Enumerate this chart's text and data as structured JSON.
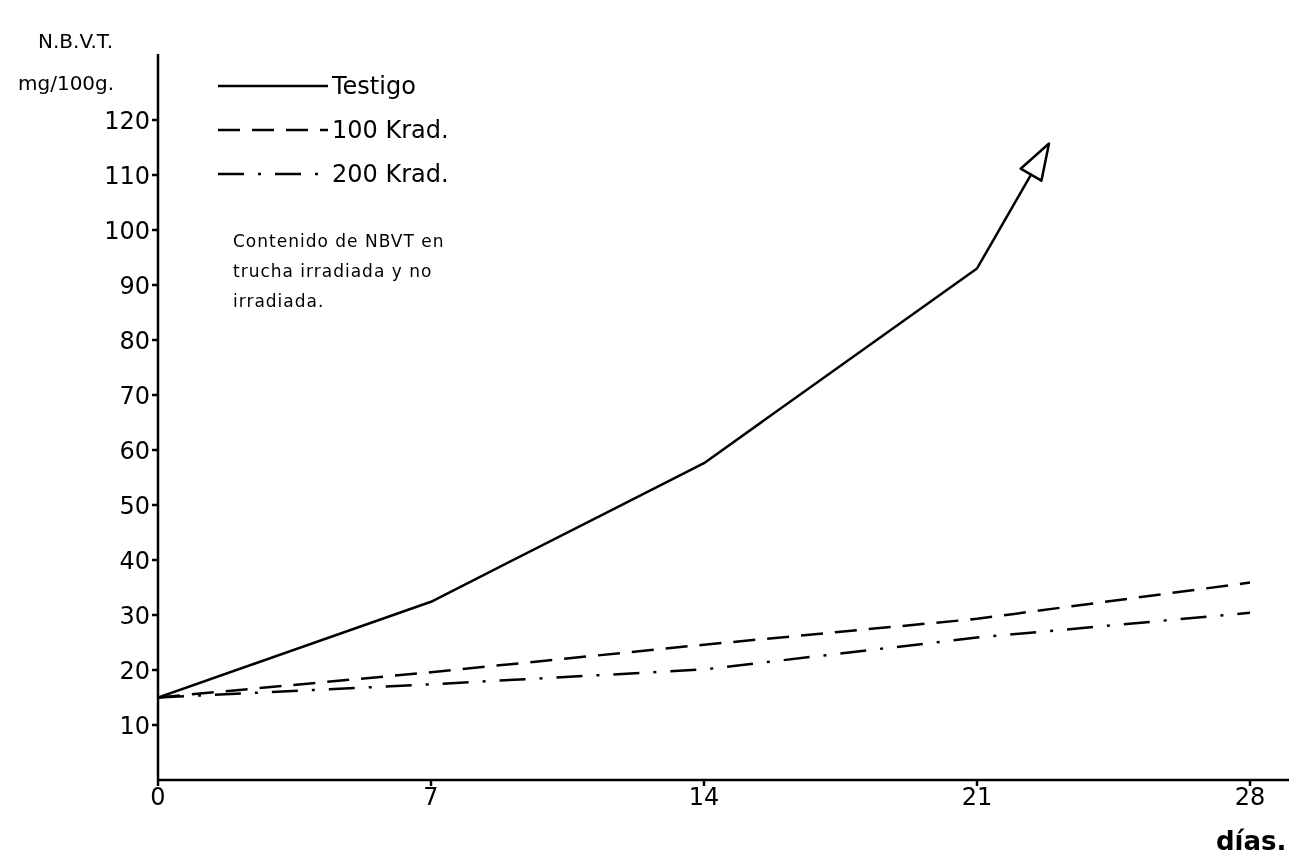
{
  "chart_data": {
    "type": "line",
    "ylabel": "N.B.V.T.\nmg/100g.",
    "xlabel": "días.",
    "annotations": [
      "Contenido de NBVT en trucha irradiada y no irradiada."
    ],
    "x": [
      0,
      7,
      14,
      21,
      28
    ],
    "series": [
      {
        "name": "Testigo",
        "color": "#000000",
        "line_style": "solid",
        "values": [
          15,
          32.4,
          57.6,
          93,
          null
        ]
      },
      {
        "name": "100 Krad.",
        "color": "#000000",
        "line_style": "dashed",
        "values": [
          15,
          19.6,
          24.6,
          29.3,
          35.9
        ]
      },
      {
        "name": "200 Krad.",
        "color": "#000000",
        "line_style": "dashdot",
        "values": [
          15,
          17.4,
          20.1,
          25.9,
          30.4
        ]
      }
    ],
    "xlim": [
      0,
      29
    ],
    "xticks": [
      0,
      7,
      14,
      21,
      28
    ],
    "ylim": [
      0,
      132
    ],
    "yticks": [
      10,
      20,
      30,
      40,
      50,
      60,
      70,
      80,
      90,
      100,
      110,
      120
    ],
    "grid": false,
    "legend": "top left",
    "marker": "none"
  }
}
